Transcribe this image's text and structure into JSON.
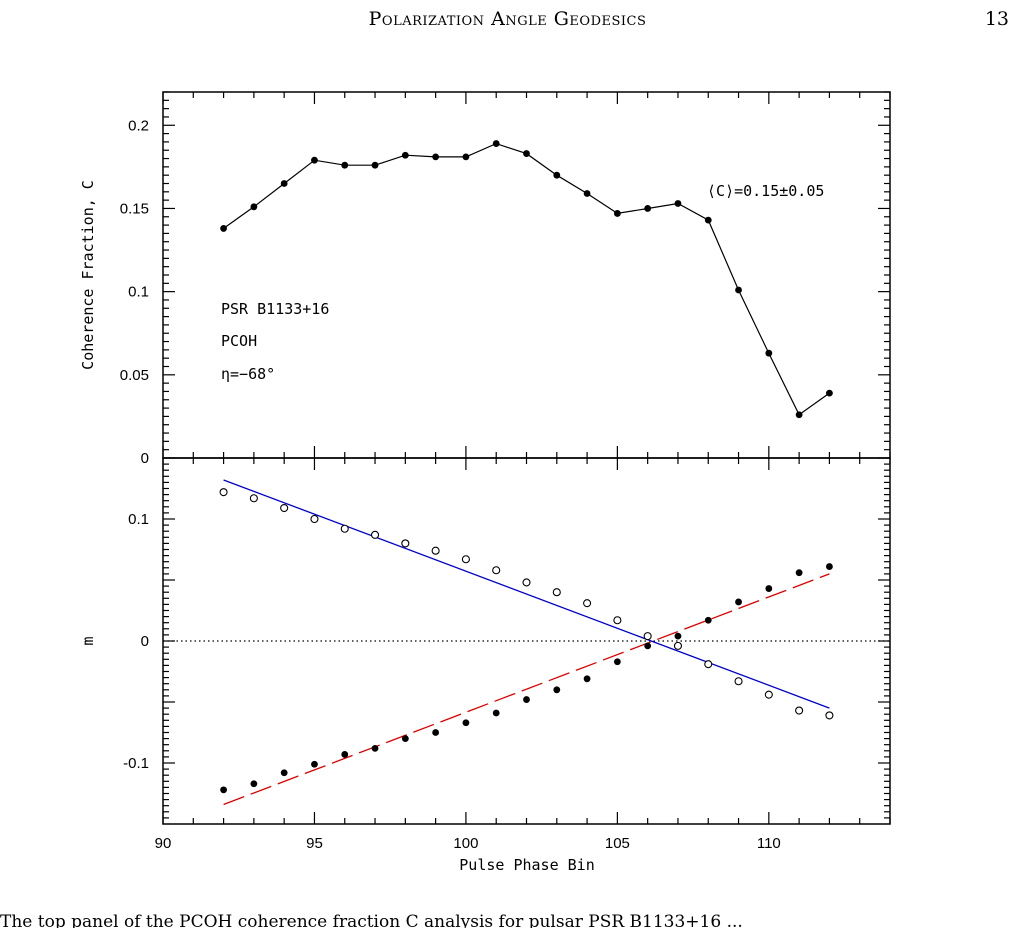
{
  "header": {
    "title": "Polarization Angle Geodesics",
    "page_number": "13"
  },
  "caption": "The top panel of the PCOH coherence fraction C analysis for pulsar PSR B1133+16 ...",
  "chart_data": [
    {
      "type": "line",
      "panel": "top",
      "ylabel": "Coherence Fraction, C",
      "xlim": [
        90,
        114
      ],
      "ylim": [
        0,
        0.22
      ],
      "yticks": [
        "0",
        "0.05",
        "0.1",
        "0.15",
        "0.2"
      ],
      "x": [
        92,
        93,
        94,
        95,
        96,
        97,
        98,
        99,
        100,
        101,
        102,
        103,
        104,
        105,
        106,
        107,
        108,
        109,
        110,
        111,
        112
      ],
      "series": [
        {
          "values": [
            0.138,
            0.151,
            0.165,
            0.179,
            0.176,
            0.176,
            0.182,
            0.181,
            0.181,
            0.189,
            0.183,
            0.17,
            0.159,
            0.147,
            0.15,
            0.153,
            0.143,
            0.101,
            0.063,
            0.026,
            0.039
          ]
        }
      ],
      "annotations": {
        "source": "PSR B1133+16",
        "method": "PCOH",
        "eta": "η=−68°",
        "mean": "⟨C⟩=0.15±0.05"
      }
    },
    {
      "type": "scatter",
      "panel": "bottom",
      "xlabel": "Pulse Phase Bin",
      "ylabel": "m",
      "xlim": [
        90,
        114
      ],
      "ylim": [
        -0.15,
        0.15
      ],
      "xticks": [
        "90",
        "95",
        "100",
        "105",
        "110"
      ],
      "yticks": [
        "-0.1",
        "0",
        "0.1"
      ],
      "x": [
        92,
        93,
        94,
        95,
        96,
        97,
        98,
        99,
        100,
        101,
        102,
        103,
        104,
        105,
        106,
        107,
        108,
        109,
        110,
        111,
        112
      ],
      "series": [
        {
          "marker": "open",
          "values": [
            0.122,
            0.117,
            0.109,
            0.1,
            0.092,
            0.087,
            0.08,
            0.074,
            0.067,
            0.058,
            0.048,
            0.04,
            0.031,
            0.017,
            0.004,
            -0.004,
            -0.019,
            -0.033,
            -0.044,
            -0.057,
            -0.061
          ]
        },
        {
          "marker": "filled",
          "values": [
            -0.122,
            -0.117,
            -0.108,
            -0.101,
            -0.093,
            -0.088,
            -0.08,
            -0.075,
            -0.067,
            -0.059,
            -0.048,
            -0.04,
            -0.031,
            -0.017,
            -0.004,
            0.004,
            0.017,
            0.032,
            0.043,
            0.056,
            0.061
          ]
        }
      ],
      "fit_lines": [
        {
          "color": "#0000cc",
          "style": "solid",
          "x": [
            92,
            112
          ],
          "y": [
            0.132,
            -0.055
          ]
        },
        {
          "color": "#dd0000",
          "style": "dashed",
          "x": [
            92,
            112
          ],
          "y": [
            -0.134,
            0.055
          ]
        }
      ],
      "reference_line": {
        "y": 0,
        "style": "dotted"
      }
    }
  ]
}
